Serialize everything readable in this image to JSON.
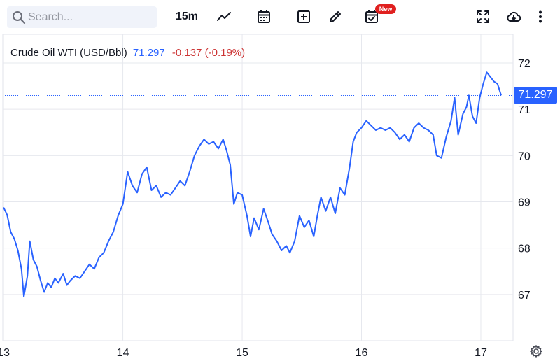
{
  "search": {
    "placeholder": "Search..."
  },
  "toolbar": {
    "interval": "15m",
    "new_badge": "New"
  },
  "legend": {
    "name": "Crude Oil WTI (USD/Bbl)",
    "last": "71.297",
    "change": "-0.137 (-0.19%)"
  },
  "price_tag": "71.297",
  "colors": {
    "line": "#2962ff",
    "negative": "#cc3333",
    "badge": "#e0201f",
    "grid": "#e6e8ee"
  },
  "icons": [
    "search-icon",
    "line-chart-icon",
    "calendar-icon",
    "add-box-icon",
    "pencil-icon",
    "calendar-check-icon",
    "fullscreen-icon",
    "cloud-download-icon",
    "more-vertical-icon",
    "gear-icon"
  ],
  "chart_data": {
    "type": "line",
    "series": [
      {
        "values": [
          [
            13.0,
            68.88
          ],
          [
            13.03,
            68.72
          ],
          [
            13.06,
            68.35
          ],
          [
            13.09,
            68.2
          ],
          [
            13.12,
            67.95
          ],
          [
            13.15,
            67.55
          ],
          [
            13.17,
            66.95
          ],
          [
            13.2,
            67.4
          ],
          [
            13.22,
            68.15
          ],
          [
            13.25,
            67.75
          ],
          [
            13.28,
            67.6
          ],
          [
            13.31,
            67.3
          ],
          [
            13.34,
            67.05
          ],
          [
            13.37,
            67.25
          ],
          [
            13.4,
            67.15
          ],
          [
            13.43,
            67.35
          ],
          [
            13.46,
            67.25
          ],
          [
            13.5,
            67.45
          ],
          [
            13.53,
            67.2
          ],
          [
            13.56,
            67.3
          ],
          [
            13.6,
            67.4
          ],
          [
            13.64,
            67.35
          ],
          [
            13.68,
            67.5
          ],
          [
            13.72,
            67.65
          ],
          [
            13.76,
            67.55
          ],
          [
            13.8,
            67.8
          ],
          [
            13.84,
            67.9
          ],
          [
            13.88,
            68.15
          ],
          [
            13.92,
            68.35
          ],
          [
            13.96,
            68.7
          ],
          [
            14.0,
            68.95
          ],
          [
            14.04,
            69.65
          ],
          [
            14.08,
            69.35
          ],
          [
            14.12,
            69.2
          ],
          [
            14.16,
            69.6
          ],
          [
            14.2,
            69.75
          ],
          [
            14.24,
            69.25
          ],
          [
            14.28,
            69.35
          ],
          [
            14.32,
            69.1
          ],
          [
            14.36,
            69.2
          ],
          [
            14.4,
            69.15
          ],
          [
            14.44,
            69.3
          ],
          [
            14.48,
            69.45
          ],
          [
            14.52,
            69.35
          ],
          [
            14.56,
            69.65
          ],
          [
            14.6,
            70.0
          ],
          [
            14.64,
            70.2
          ],
          [
            14.68,
            70.35
          ],
          [
            14.72,
            70.25
          ],
          [
            14.76,
            70.3
          ],
          [
            14.8,
            70.15
          ],
          [
            14.84,
            70.35
          ],
          [
            14.87,
            70.1
          ],
          [
            14.9,
            69.8
          ],
          [
            14.93,
            68.95
          ],
          [
            14.96,
            69.2
          ],
          [
            15.0,
            69.15
          ],
          [
            15.04,
            68.7
          ],
          [
            15.07,
            68.25
          ],
          [
            15.1,
            68.65
          ],
          [
            15.14,
            68.4
          ],
          [
            15.18,
            68.85
          ],
          [
            15.22,
            68.55
          ],
          [
            15.25,
            68.3
          ],
          [
            15.29,
            68.15
          ],
          [
            15.33,
            67.95
          ],
          [
            15.37,
            68.05
          ],
          [
            15.4,
            67.9
          ],
          [
            15.44,
            68.15
          ],
          [
            15.48,
            68.7
          ],
          [
            15.52,
            68.45
          ],
          [
            15.56,
            68.6
          ],
          [
            15.6,
            68.25
          ],
          [
            15.63,
            68.7
          ],
          [
            15.66,
            69.1
          ],
          [
            15.7,
            68.8
          ],
          [
            15.74,
            69.1
          ],
          [
            15.78,
            68.75
          ],
          [
            15.82,
            69.3
          ],
          [
            15.86,
            69.15
          ],
          [
            15.9,
            69.75
          ],
          [
            15.93,
            70.3
          ],
          [
            15.96,
            70.5
          ],
          [
            16.0,
            70.6
          ],
          [
            16.04,
            70.75
          ],
          [
            16.08,
            70.65
          ],
          [
            16.12,
            70.55
          ],
          [
            16.16,
            70.6
          ],
          [
            16.2,
            70.55
          ],
          [
            16.24,
            70.6
          ],
          [
            16.28,
            70.5
          ],
          [
            16.32,
            70.35
          ],
          [
            16.36,
            70.45
          ],
          [
            16.4,
            70.3
          ],
          [
            16.44,
            70.6
          ],
          [
            16.48,
            70.7
          ],
          [
            16.52,
            70.6
          ],
          [
            16.56,
            70.55
          ],
          [
            16.6,
            70.45
          ],
          [
            16.63,
            70.0
          ],
          [
            16.67,
            69.95
          ],
          [
            16.71,
            70.4
          ],
          [
            16.75,
            70.75
          ],
          [
            16.78,
            71.25
          ],
          [
            16.81,
            70.45
          ],
          [
            16.85,
            70.9
          ],
          [
            16.88,
            71.05
          ],
          [
            16.9,
            71.3
          ],
          [
            16.93,
            70.85
          ],
          [
            16.96,
            70.7
          ],
          [
            16.99,
            71.25
          ],
          [
            17.02,
            71.55
          ],
          [
            17.05,
            71.8
          ],
          [
            17.08,
            71.7
          ],
          [
            17.11,
            71.6
          ],
          [
            17.14,
            71.55
          ],
          [
            17.17,
            71.3
          ]
        ]
      }
    ],
    "xlabel": "",
    "ylabel": "",
    "x_ticks": [
      "13",
      "14",
      "15",
      "16",
      "17"
    ],
    "x_tick_values": [
      13,
      14,
      15,
      16,
      17
    ],
    "y_ticks": [
      "67",
      "68",
      "69",
      "70",
      "71",
      "72"
    ],
    "y_tick_values": [
      67,
      68,
      69,
      70,
      71,
      72
    ],
    "last_value": 71.297,
    "xlim": [
      12.97,
      17.27
    ],
    "ylim": [
      66.0,
      72.62
    ],
    "grid": true
  }
}
